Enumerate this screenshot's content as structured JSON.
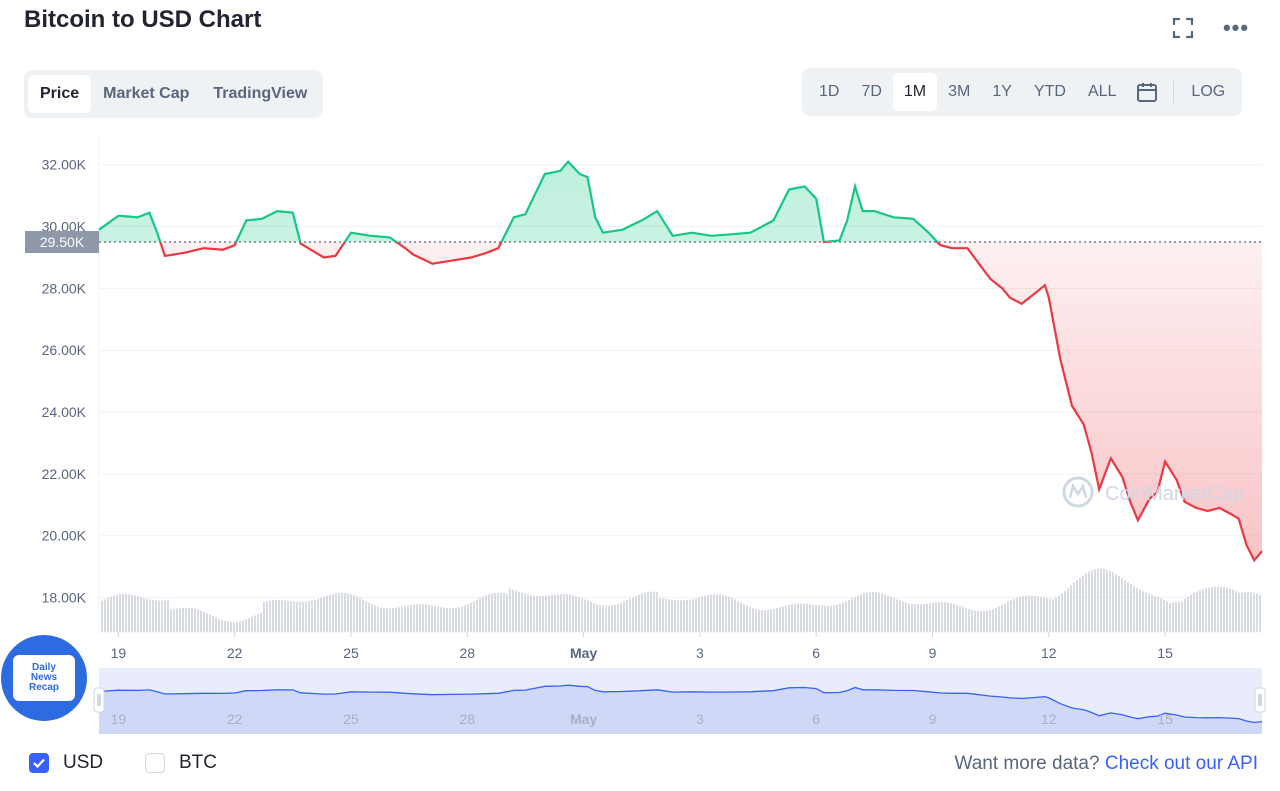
{
  "header": {
    "title": "Bitcoin to USD Chart"
  },
  "view_tabs": [
    "Price",
    "Market Cap",
    "TradingView"
  ],
  "view_active": "Price",
  "range_tabs": [
    "1D",
    "7D",
    "1M",
    "3M",
    "1Y",
    "YTD",
    "ALL"
  ],
  "range_active": "1M",
  "log_label": "LOG",
  "currencies": [
    {
      "label": "USD",
      "checked": true
    },
    {
      "label": "BTC",
      "checked": false
    }
  ],
  "footer": {
    "prompt": "Want more data?",
    "link": "Check out our API"
  },
  "watermark": "CoinMarketCap",
  "badge": {
    "text": "Daily\nNews\nRecap"
  },
  "colors": {
    "up": "#16c784",
    "down": "#ea3943",
    "accent": "#3861fb"
  },
  "chart_data": {
    "type": "line",
    "title": "Bitcoin to USD Chart",
    "yaxis": {
      "ticks": [
        "18.00K",
        "20.00K",
        "22.00K",
        "24.00K",
        "26.00K",
        "28.00K",
        "30.00K",
        "32.00K"
      ],
      "min": 17500,
      "max": 32800
    },
    "reference": {
      "value": 29500,
      "label": "29.50K"
    },
    "xaxis": {
      "ticks": [
        {
          "label": "19",
          "x": 19
        },
        {
          "label": "22",
          "x": 22
        },
        {
          "label": "25",
          "x": 25
        },
        {
          "label": "28",
          "x": 28
        },
        {
          "label": "May",
          "x": 31
        },
        {
          "label": "3",
          "x": 34
        },
        {
          "label": "6",
          "x": 37
        },
        {
          "label": "9",
          "x": 40
        },
        {
          "label": "12",
          "x": 43
        },
        {
          "label": "15",
          "x": 46
        }
      ],
      "min": 18.5,
      "max": 48.5
    },
    "series": [
      {
        "points": [
          [
            18.5,
            29900
          ],
          [
            19.0,
            30350
          ],
          [
            19.5,
            30300
          ],
          [
            19.8,
            30450
          ],
          [
            20.0,
            29800
          ],
          [
            20.2,
            29050
          ],
          [
            20.7,
            29150
          ],
          [
            21.2,
            29300
          ],
          [
            21.7,
            29250
          ],
          [
            22.0,
            29400
          ],
          [
            22.3,
            30200
          ],
          [
            22.7,
            30250
          ],
          [
            23.1,
            30500
          ],
          [
            23.5,
            30450
          ],
          [
            23.7,
            29450
          ],
          [
            24.3,
            29000
          ],
          [
            24.6,
            29050
          ],
          [
            25.0,
            29800
          ],
          [
            25.5,
            29700
          ],
          [
            26.0,
            29650
          ],
          [
            26.4,
            29300
          ],
          [
            26.6,
            29100
          ],
          [
            27.1,
            28800
          ],
          [
            27.6,
            28900
          ],
          [
            28.1,
            29000
          ],
          [
            28.5,
            29150
          ],
          [
            28.8,
            29300
          ],
          [
            29.2,
            30300
          ],
          [
            29.5,
            30400
          ],
          [
            30.0,
            31700
          ],
          [
            30.4,
            31800
          ],
          [
            30.6,
            32100
          ],
          [
            30.9,
            31700
          ],
          [
            31.1,
            31600
          ],
          [
            31.3,
            30300
          ],
          [
            31.5,
            29800
          ],
          [
            32.0,
            29900
          ],
          [
            32.5,
            30200
          ],
          [
            32.9,
            30500
          ],
          [
            33.3,
            29700
          ],
          [
            33.8,
            29800
          ],
          [
            34.3,
            29700
          ],
          [
            34.8,
            29750
          ],
          [
            35.3,
            29800
          ],
          [
            35.6,
            30000
          ],
          [
            35.9,
            30200
          ],
          [
            36.3,
            31200
          ],
          [
            36.7,
            31300
          ],
          [
            37.0,
            30900
          ],
          [
            37.2,
            29500
          ],
          [
            37.6,
            29550
          ],
          [
            37.8,
            30200
          ],
          [
            38.0,
            31300
          ],
          [
            38.2,
            30500
          ],
          [
            38.5,
            30500
          ],
          [
            39.0,
            30300
          ],
          [
            39.5,
            30250
          ],
          [
            39.9,
            29800
          ],
          [
            40.2,
            29400
          ],
          [
            40.5,
            29300
          ],
          [
            40.9,
            29300
          ],
          [
            41.2,
            28800
          ],
          [
            41.5,
            28300
          ],
          [
            41.8,
            28000
          ],
          [
            42.0,
            27700
          ],
          [
            42.3,
            27500
          ],
          [
            42.6,
            27800
          ],
          [
            42.9,
            28100
          ],
          [
            43.0,
            27700
          ],
          [
            43.3,
            25700
          ],
          [
            43.6,
            24200
          ],
          [
            43.9,
            23600
          ],
          [
            44.1,
            22700
          ],
          [
            44.3,
            21500
          ],
          [
            44.6,
            22500
          ],
          [
            44.9,
            21900
          ],
          [
            45.1,
            21100
          ],
          [
            45.3,
            20500
          ],
          [
            45.6,
            21200
          ],
          [
            45.8,
            21400
          ],
          [
            46.0,
            22400
          ],
          [
            46.3,
            21800
          ],
          [
            46.5,
            21100
          ],
          [
            46.8,
            20900
          ],
          [
            47.1,
            20800
          ],
          [
            47.4,
            20900
          ],
          [
            47.7,
            20700
          ],
          [
            47.9,
            20550
          ],
          [
            48.1,
            19700
          ],
          [
            48.3,
            19200
          ],
          [
            48.5,
            19500
          ]
        ]
      }
    ]
  }
}
